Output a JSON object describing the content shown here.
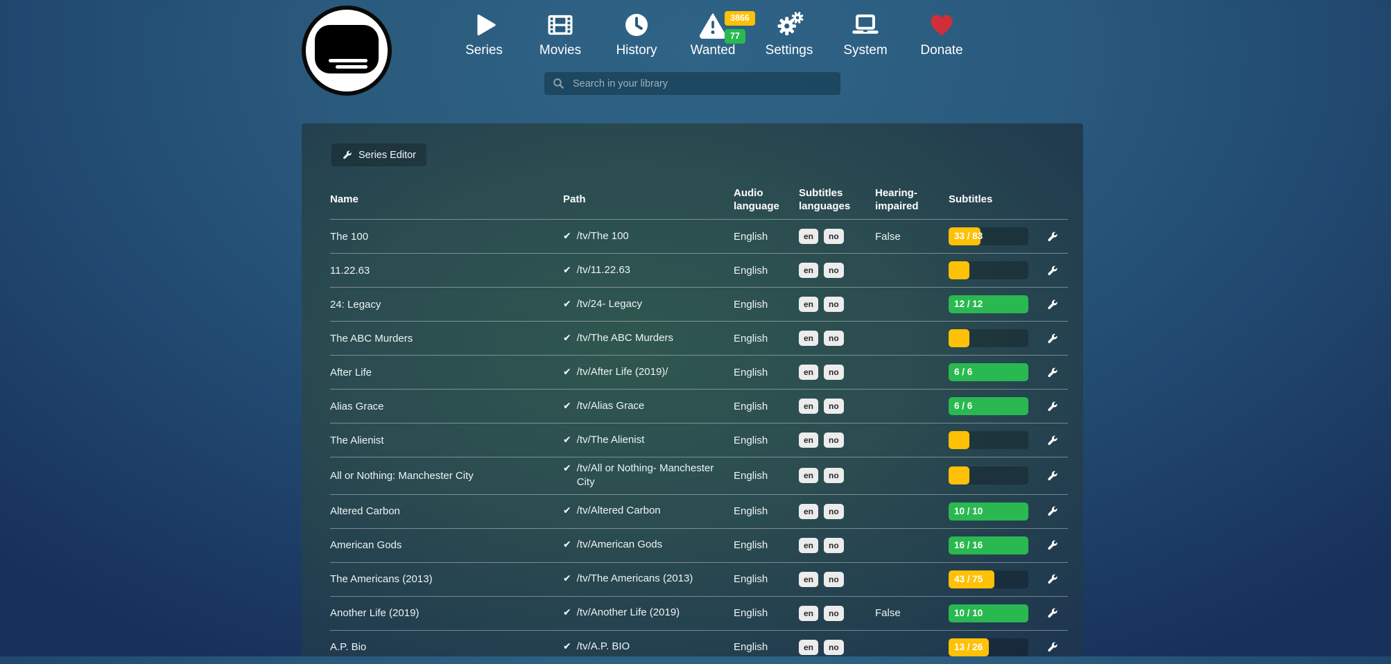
{
  "colors": {
    "orange": "#ffc107",
    "green": "#29b950",
    "heart": "#d02f39"
  },
  "nav": {
    "items": [
      {
        "label": "Series",
        "icon": "play-icon"
      },
      {
        "label": "Movies",
        "icon": "film-icon"
      },
      {
        "label": "History",
        "icon": "clock-icon"
      },
      {
        "label": "Wanted",
        "icon": "warning-icon"
      },
      {
        "label": "Settings",
        "icon": "gears-icon"
      },
      {
        "label": "System",
        "icon": "laptop-icon"
      },
      {
        "label": "Donate",
        "icon": "heart-icon"
      }
    ],
    "wanted_badges": {
      "orange": "3866",
      "green": "77"
    }
  },
  "search": {
    "placeholder": "Search in your library"
  },
  "toolbar": {
    "series_editor_label": "Series Editor"
  },
  "table": {
    "headers": [
      "Name",
      "Path",
      "Audio language",
      "Subtitles languages",
      "Hearing-impaired",
      "Subtitles",
      ""
    ],
    "rows": [
      {
        "name": "The 100",
        "path": "/tv/The 100",
        "audio": "English",
        "subtitle_languages": [
          "en",
          "no"
        ],
        "hearing_impaired": "False",
        "subtitles": {
          "label": "33 / 83",
          "percent": 40,
          "color": "orange"
        }
      },
      {
        "name": "11.22.63",
        "path": "/tv/11.22.63",
        "audio": "English",
        "subtitle_languages": [
          "en",
          "no"
        ],
        "hearing_impaired": "",
        "subtitles": {
          "label": "",
          "percent": 26,
          "color": "orange"
        }
      },
      {
        "name": "24: Legacy",
        "path": "/tv/24- Legacy",
        "audio": "English",
        "subtitle_languages": [
          "en",
          "no"
        ],
        "hearing_impaired": "",
        "subtitles": {
          "label": "12 / 12",
          "percent": 100,
          "color": "green"
        }
      },
      {
        "name": "The ABC Murders",
        "path": "/tv/The ABC Murders",
        "audio": "English",
        "subtitle_languages": [
          "en",
          "no"
        ],
        "hearing_impaired": "",
        "subtitles": {
          "label": "",
          "percent": 26,
          "color": "orange"
        }
      },
      {
        "name": "After Life",
        "path": "/tv/After Life (2019)/",
        "audio": "English",
        "subtitle_languages": [
          "en",
          "no"
        ],
        "hearing_impaired": "",
        "subtitles": {
          "label": "6 / 6",
          "percent": 100,
          "color": "green"
        }
      },
      {
        "name": "Alias Grace",
        "path": "/tv/Alias Grace",
        "audio": "English",
        "subtitle_languages": [
          "en",
          "no"
        ],
        "hearing_impaired": "",
        "subtitles": {
          "label": "6 / 6",
          "percent": 100,
          "color": "green"
        }
      },
      {
        "name": "The Alienist",
        "path": "/tv/The Alienist",
        "audio": "English",
        "subtitle_languages": [
          "en",
          "no"
        ],
        "hearing_impaired": "",
        "subtitles": {
          "label": "",
          "percent": 26,
          "color": "orange"
        }
      },
      {
        "name": "All or Nothing: Manchester City",
        "path": "/tv/All or Nothing- Manchester City",
        "audio": "English",
        "subtitle_languages": [
          "en",
          "no"
        ],
        "hearing_impaired": "",
        "subtitles": {
          "label": "",
          "percent": 26,
          "color": "orange"
        }
      },
      {
        "name": "Altered Carbon",
        "path": "/tv/Altered Carbon",
        "audio": "English",
        "subtitle_languages": [
          "en",
          "no"
        ],
        "hearing_impaired": "",
        "subtitles": {
          "label": "10 / 10",
          "percent": 100,
          "color": "green"
        }
      },
      {
        "name": "American Gods",
        "path": "/tv/American Gods",
        "audio": "English",
        "subtitle_languages": [
          "en",
          "no"
        ],
        "hearing_impaired": "",
        "subtitles": {
          "label": "16 / 16",
          "percent": 100,
          "color": "green"
        }
      },
      {
        "name": "The Americans (2013)",
        "path": "/tv/The Americans (2013)",
        "audio": "English",
        "subtitle_languages": [
          "en",
          "no"
        ],
        "hearing_impaired": "",
        "subtitles": {
          "label": "43 / 75",
          "percent": 57,
          "color": "orange"
        }
      },
      {
        "name": "Another Life (2019)",
        "path": "/tv/Another Life (2019)",
        "audio": "English",
        "subtitle_languages": [
          "en",
          "no"
        ],
        "hearing_impaired": "False",
        "subtitles": {
          "label": "10 / 10",
          "percent": 100,
          "color": "green"
        }
      },
      {
        "name": "A.P. Bio",
        "path": "/tv/A.P. BIO",
        "audio": "English",
        "subtitle_languages": [
          "en",
          "no"
        ],
        "hearing_impaired": "",
        "subtitles": {
          "label": "13 / 26",
          "percent": 50,
          "color": "orange"
        }
      }
    ]
  }
}
